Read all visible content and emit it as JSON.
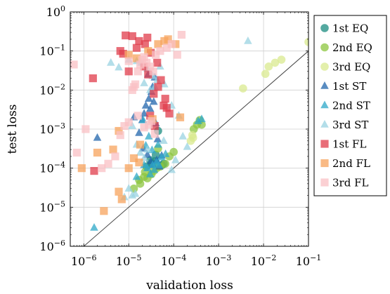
{
  "chart_data": {
    "type": "scatter",
    "xlabel": "validation loss",
    "ylabel": "test loss",
    "xscale": "log",
    "yscale": "log",
    "xlim": [
      5e-07,
      0.1
    ],
    "ylim": [
      1e-06,
      1
    ],
    "x_ticks": [
      {
        "value": 1e-06,
        "base": "10",
        "exp": "−6"
      },
      {
        "value": 1e-05,
        "base": "10",
        "exp": "−5"
      },
      {
        "value": 0.0001,
        "base": "10",
        "exp": "−4"
      },
      {
        "value": 0.001,
        "base": "10",
        "exp": "−3"
      },
      {
        "value": 0.01,
        "base": "10",
        "exp": "−2"
      },
      {
        "value": 0.1,
        "base": "10",
        "exp": "−1"
      }
    ],
    "y_ticks": [
      {
        "value": 1e-06,
        "base": "10",
        "exp": "−6"
      },
      {
        "value": 1e-05,
        "base": "10",
        "exp": "−5"
      },
      {
        "value": 0.0001,
        "base": "10",
        "exp": "−4"
      },
      {
        "value": 0.001,
        "base": "10",
        "exp": "−3"
      },
      {
        "value": 0.01,
        "base": "10",
        "exp": "−2"
      },
      {
        "value": 0.1,
        "base": "10",
        "exp": "−1"
      },
      {
        "value": 1,
        "base": "10",
        "exp": "0"
      }
    ],
    "grid": true,
    "reference_line": "y = x",
    "legend_position": "right",
    "series": [
      {
        "name": "1st EQ",
        "marker": "circle",
        "color": "#1b8c80",
        "points": [
          [
            3.2e-05,
            0.00013
          ],
          [
            3.8e-05,
            0.00015
          ],
          [
            4.5e-05,
            0.0009
          ],
          [
            5.5e-05,
            0.00012
          ],
          [
            2.5e-05,
            0.00011
          ],
          [
            3e-05,
            0.00016
          ],
          [
            6e-05,
            0.00013
          ],
          [
            4e-05,
            0.00022
          ]
        ]
      },
      {
        "name": "2nd EQ",
        "marker": "circle",
        "color": "#8cc63f",
        "points": [
          [
            1.3e-05,
            3e-05
          ],
          [
            1.7e-05,
            5e-05
          ],
          [
            2.2e-05,
            6e-05
          ],
          [
            2.6e-05,
            5.5e-05
          ],
          [
            3.2e-05,
            7e-05
          ],
          [
            3.6e-05,
            8.5e-05
          ],
          [
            4.2e-05,
            0.0001
          ],
          [
            5e-05,
            0.00011
          ],
          [
            6.5e-05,
            0.00013
          ],
          [
            8e-05,
            0.0002
          ],
          [
            0.0001,
            0.00026
          ],
          [
            4.5e-05,
            0.00032
          ],
          [
            0.00028,
            0.001
          ],
          [
            0.00033,
            0.0013
          ],
          [
            0.00038,
            0.0017
          ],
          [
            0.00042,
            0.0013
          ],
          [
            1.8e-05,
            4e-05
          ],
          [
            2.3e-05,
            8e-05
          ]
        ]
      },
      {
        "name": "3rd EQ",
        "marker": "circle",
        "color": "#d9e98f",
        "points": [
          [
            0.1,
            0.17
          ],
          [
            0.025,
            0.06
          ],
          [
            0.018,
            0.05
          ],
          [
            0.013,
            0.04
          ],
          [
            0.011,
            0.026
          ],
          [
            0.0035,
            0.011
          ],
          [
            0.00027,
            0.0006
          ],
          [
            0.00024,
            0.0005
          ],
          [
            0.00026,
            0.0007
          ]
        ]
      },
      {
        "name": "1st ST",
        "marker": "triangle",
        "color": "#2166ac",
        "points": [
          [
            2e-06,
            0.0006
          ],
          [
            1.3e-05,
            0.002
          ],
          [
            1.7e-05,
            0.0008
          ],
          [
            2e-05,
            0.0017
          ],
          [
            2.4e-05,
            0.004
          ],
          [
            2.8e-05,
            0.006
          ],
          [
            3.2e-05,
            0.009
          ],
          [
            3.6e-05,
            0.005
          ],
          [
            4e-05,
            0.0014
          ],
          [
            2.1e-05,
            0.00032
          ],
          [
            2.6e-05,
            0.00022
          ],
          [
            3.1e-05,
            0.00015
          ],
          [
            3.5e-05,
            0.00012
          ],
          [
            4.2e-05,
            0.00016
          ],
          [
            4.8e-05,
            0.00011
          ],
          [
            2.2e-05,
            0.0025
          ],
          [
            2.7e-05,
            0.025
          ],
          [
            3.4e-05,
            0.012
          ],
          [
            3.8e-05,
            0.021
          ],
          [
            3e-05,
            0.0033
          ],
          [
            5.4e-05,
            0.00021
          ],
          [
            4.4e-05,
            0.00055
          ]
        ]
      },
      {
        "name": "2nd ST",
        "marker": "triangle",
        "color": "#2ea8c8",
        "points": [
          [
            1.7e-06,
            3e-06
          ],
          [
            2.2e-05,
            0.00012
          ],
          [
            2.6e-05,
            0.0001
          ],
          [
            3e-05,
            7e-05
          ],
          [
            3.4e-05,
            0.00012
          ],
          [
            3.7e-05,
            9e-05
          ],
          [
            4.1e-05,
            0.00014
          ],
          [
            4.7e-05,
            0.00012
          ],
          [
            5.3e-05,
            0.00019
          ],
          [
            6.6e-05,
            0.00023
          ],
          [
            3.3e-05,
            0.00029
          ],
          [
            2.1e-05,
            0.0017
          ],
          [
            2.8e-05,
            0.00065
          ],
          [
            0.00035,
            0.0016
          ],
          [
            0.00042,
            0.0018
          ],
          [
            1.5e-05,
            6e-05
          ],
          [
            2.4e-05,
            0.00038
          ],
          [
            4.5e-05,
            0.0004
          ]
        ]
      },
      {
        "name": "3rd ST",
        "marker": "triangle",
        "color": "#9ad3e2",
        "points": [
          [
            4e-06,
            0.05
          ],
          [
            6e-06,
            0.038
          ],
          [
            1e-05,
            0.06
          ],
          [
            1.5e-05,
            0.055
          ],
          [
            1.9e-05,
            0.05
          ],
          [
            2.2e-05,
            0.015
          ],
          [
            2.6e-05,
            0.035
          ],
          [
            3e-05,
            0.01
          ],
          [
            3.4e-05,
            0.023
          ],
          [
            3.8e-05,
            0.012
          ],
          [
            4.3e-05,
            0.018
          ],
          [
            5e-05,
            0.04
          ],
          [
            6.2e-05,
            0.014
          ],
          [
            9e-05,
            0.004
          ],
          [
            0.00013,
            0.0022
          ],
          [
            0.00016,
            0.00065
          ],
          [
            0.0002,
            0.00035
          ],
          [
            1.2e-05,
            0.0012
          ],
          [
            1.5e-05,
            0.0004
          ],
          [
            1.8e-05,
            0.00025
          ],
          [
            2.2e-05,
            0.00018
          ],
          [
            2.6e-05,
            0.0003
          ],
          [
            3.5e-05,
            0.0016
          ],
          [
            6e-05,
            0.0005
          ],
          [
            1.2e-05,
            2e-05
          ],
          [
            1.4e-05,
            2.2e-05
          ],
          [
            8e-06,
            1.8e-05
          ],
          [
            1e-05,
            3e-05
          ],
          [
            0.0045,
            0.18
          ],
          [
            9e-05,
            9e-05
          ],
          [
            0.00011,
            0.00016
          ]
        ]
      },
      {
        "name": "1st FL",
        "marker": "square",
        "color": "#e03c4b",
        "points": [
          [
            8.5e-06,
            0.25
          ],
          [
            6.5e-06,
            0.1
          ],
          [
            7.5e-06,
            0.085
          ],
          [
            1.2e-05,
            0.24
          ],
          [
            1.5e-05,
            0.12
          ],
          [
            1.7e-05,
            0.18
          ],
          [
            2.3e-05,
            0.15
          ],
          [
            2.6e-05,
            0.22
          ],
          [
            3.1e-05,
            0.09
          ],
          [
            2.2e-05,
            0.04
          ],
          [
            2.7e-05,
            0.025
          ],
          [
            3.6e-05,
            0.008
          ],
          [
            4.5e-05,
            0.012
          ],
          [
            5.2e-05,
            0.018
          ],
          [
            6e-05,
            0.004
          ],
          [
            6.5e-05,
            0.006
          ],
          [
            7e-05,
            0.0035
          ],
          [
            8e-05,
            0.0025
          ],
          [
            1.6e-06,
            0.02
          ],
          [
            1.7e-06,
            8.5e-05
          ],
          [
            3e-05,
            0.0022
          ],
          [
            3.8e-05,
            0.0012
          ],
          [
            4.3e-05,
            0.05
          ],
          [
            1e-05,
            0.03
          ]
        ]
      },
      {
        "name": "2nd FL",
        "marker": "square",
        "color": "#f7a35c",
        "points": [
          [
            9e-07,
            0.0001
          ],
          [
            2e-06,
            0.00025
          ],
          [
            4.5e-06,
            0.0003
          ],
          [
            6e-06,
            2.5e-05
          ],
          [
            7e-06,
            1.6e-05
          ],
          [
            1e-05,
            0.0001
          ],
          [
            1.3e-05,
            0.00018
          ],
          [
            1.7e-05,
            0.00014
          ],
          [
            1e-05,
            0.08
          ],
          [
            1.5e-05,
            0.065
          ],
          [
            2.7e-05,
            0.1
          ],
          [
            4.5e-05,
            0.15
          ],
          [
            6.2e-05,
            0.18
          ],
          [
            7.5e-05,
            0.2
          ],
          [
            0.00011,
            0.15
          ],
          [
            6e-06,
            0.0009
          ],
          [
            2.8e-06,
            8e-06
          ],
          [
            1.8e-05,
            0.0004
          ],
          [
            3.4e-05,
            0.0018
          ],
          [
            0.00014,
            0.002
          ]
        ]
      },
      {
        "name": "3rd FL",
        "marker": "square",
        "color": "#f9c0c4",
        "points": [
          [
            6e-07,
            0.045
          ],
          [
            7e-07,
            0.00025
          ],
          [
            1.1e-06,
            0.001
          ],
          [
            2.5e-06,
            0.0001
          ],
          [
            3.5e-06,
            0.00013
          ],
          [
            5e-06,
            0.0002
          ],
          [
            6.5e-06,
            0.0007
          ],
          [
            8e-06,
            0.0012
          ],
          [
            1e-05,
            0.0015
          ],
          [
            1.2e-05,
            0.01
          ],
          [
            1.4e-05,
            0.014
          ],
          [
            1.6e-05,
            0.03
          ],
          [
            1.8e-05,
            0.045
          ],
          [
            2e-05,
            0.06
          ],
          [
            2.2e-05,
            0.07
          ],
          [
            2.5e-05,
            0.05
          ],
          [
            3e-05,
            0.04
          ],
          [
            3.5e-05,
            0.03
          ],
          [
            4e-05,
            0.08
          ],
          [
            5e-05,
            0.1
          ],
          [
            7e-05,
            0.12
          ],
          [
            9e-05,
            0.15
          ],
          [
            0.00012,
            0.08
          ],
          [
            0.00015,
            0.26
          ],
          [
            1e-05,
            0.055
          ],
          [
            1.3e-05,
            0.012
          ],
          [
            1.6e-05,
            0.0022
          ],
          [
            2.2e-05,
            0.0011
          ],
          [
            2.8e-05,
            0.0013
          ],
          [
            3.2e-05,
            0.0016
          ],
          [
            3.8e-05,
            0.00075
          ]
        ]
      }
    ]
  }
}
